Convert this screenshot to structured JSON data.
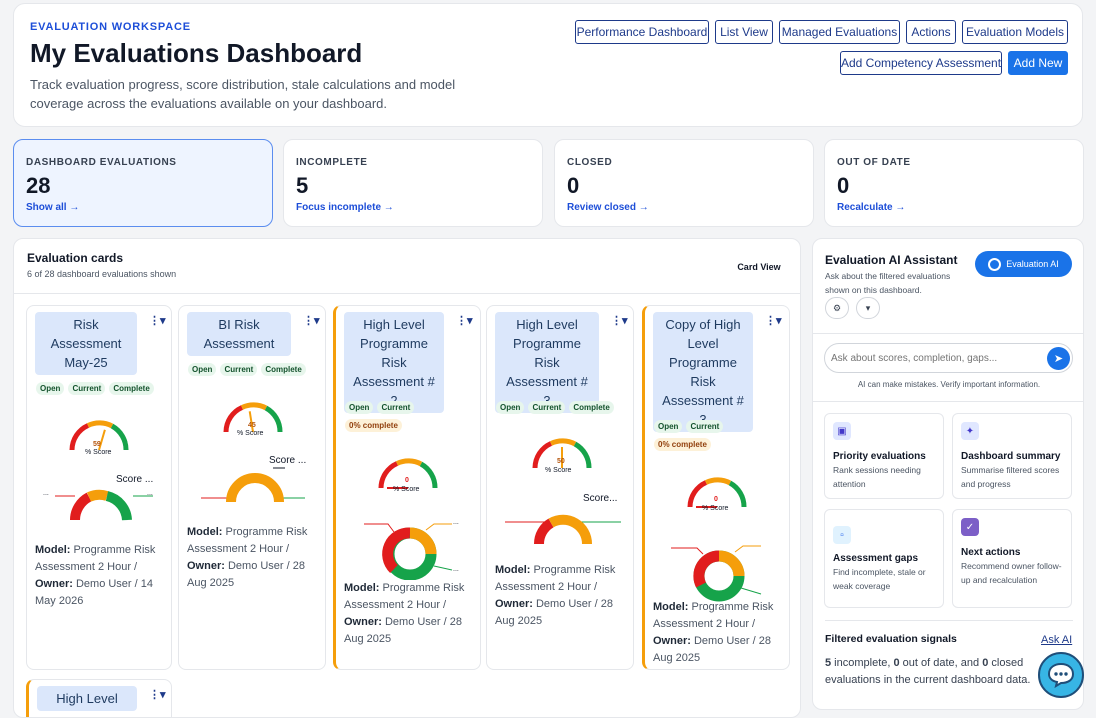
{
  "header": {
    "eyebrow": "EVALUATION WORKSPACE",
    "title": "My Evaluations Dashboard",
    "subtitle": "Track evaluation progress, score distribution, stale calculations and model coverage across the evaluations available on your dashboard.",
    "nav": [
      "Performance Dashboard",
      "List View",
      "Managed Evaluations",
      "Actions",
      "Evaluation Models"
    ],
    "add_competency": "Add Competency Assessment",
    "add_new": "Add New"
  },
  "stats": [
    {
      "label": "DASHBOARD EVALUATIONS",
      "value": "28",
      "link": "Show all →"
    },
    {
      "label": "INCOMPLETE",
      "value": "5",
      "link": "Focus incomplete →"
    },
    {
      "label": "CLOSED",
      "value": "0",
      "link": "Review closed →"
    },
    {
      "label": "OUT OF DATE",
      "value": "0",
      "link": "Recalculate →"
    }
  ],
  "cards_panel": {
    "title": "Evaluation cards",
    "subtitle": "6 of 28 dashboard evaluations shown",
    "view_mode": "Card View"
  },
  "cards": [
    {
      "title": "Risk Assessment May-25",
      "badges": [
        "Open",
        "Current",
        "Complete"
      ],
      "pct_badge": "",
      "score": "59",
      "score_label": "% Score",
      "donut_label": "Score ...",
      "model_label": "Model:",
      "model": "Programme Risk Assessment 2 Hour /",
      "owner_label": "Owner:",
      "owner": "Demo User / 14 May 2026",
      "score_fraction": 0.59
    },
    {
      "title": "BI Risk Assessment",
      "badges": [
        "Open",
        "Current",
        "Complete"
      ],
      "pct_badge": "",
      "score": "45",
      "score_label": "% Score",
      "donut_label": "Score ...",
      "model_label": "Model:",
      "model": "Programme Risk Assessment 2 Hour /",
      "owner_label": "Owner:",
      "owner": "Demo User / 28 Aug 2025",
      "score_fraction": 0.45
    },
    {
      "title": "High Level Programme Risk Assessment # 2",
      "badges": [
        "Open",
        "Current"
      ],
      "pct_badge": "0% complete",
      "score": "0",
      "score_label": "% Score",
      "donut_label": "",
      "model_label": "Model:",
      "model": "Programme Risk Assessment 2 Hour /",
      "owner_label": "Owner:",
      "owner": "Demo User / 28 Aug 2025",
      "score_fraction": 0
    },
    {
      "title": "High Level Programme Risk Assessment # 3",
      "badges": [
        "Open",
        "Current",
        "Complete"
      ],
      "pct_badge": "",
      "score": "50",
      "score_label": "% Score",
      "donut_label": "Score...",
      "model_label": "Model:",
      "model": "Programme Risk Assessment 2 Hour /",
      "owner_label": "Owner:",
      "owner": "Demo User / 28 Aug 2025",
      "score_fraction": 0.5
    },
    {
      "title": "Copy of High Level Programme Risk Assessment # 3",
      "badges": [
        "Open",
        "Current"
      ],
      "pct_badge": "0% complete",
      "score": "0",
      "score_label": "% Score",
      "donut_label": "",
      "model_label": "Model:",
      "model": "Programme Risk Assessment 2 Hour /",
      "owner_label": "Owner:",
      "owner": "Demo User / 28 Aug 2025",
      "score_fraction": 0
    },
    {
      "title": "High Level",
      "badges": [],
      "pct_badge": "",
      "score": "",
      "score_label": "",
      "donut_label": "",
      "model_label": "",
      "model": "",
      "owner_label": "",
      "owner": ""
    }
  ],
  "ai": {
    "title": "Evaluation AI Assistant",
    "subtitle": "Ask about the filtered evaluations shown on this dashboard.",
    "button": "Evaluation AI",
    "placeholder": "Ask about scores, completion, gaps...",
    "note": "AI can make mistakes. Verify important information.",
    "tiles": [
      {
        "title": "Priority evaluations",
        "desc": "Rank sessions needing attention",
        "icon": "target-icon"
      },
      {
        "title": "Dashboard summary",
        "desc": "Summarise filtered scores and progress",
        "icon": "sparkle-icon"
      },
      {
        "title": "Assessment gaps",
        "desc": "Find incomplete, stale or weak coverage",
        "icon": "square-icon"
      },
      {
        "title": "Next actions",
        "desc": "Recommend owner follow-up and recalculation",
        "icon": "check-icon"
      }
    ],
    "signals_title": "Filtered evaluation signals",
    "ask_link": "Ask AI",
    "signals_pre": "5",
    "signals_t1": " incomplete, ",
    "signals_n2": "0",
    "signals_t2": " out of date, and ",
    "signals_n3": "0",
    "signals_t3": " closed evaluations in the current dashboard data."
  },
  "colors": {
    "accent": "#1a73e8",
    "warn": "#f59e0b",
    "red": "#e11d1d",
    "green": "#16a34a"
  }
}
